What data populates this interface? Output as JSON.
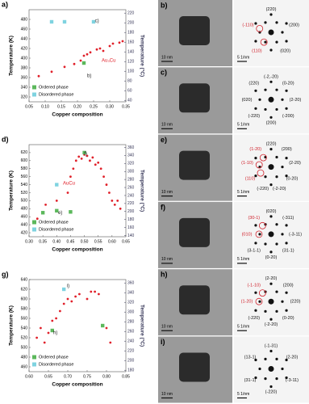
{
  "chart_data": [
    {
      "type": "scatter",
      "panel": "a)",
      "xlabel": "Copper composition",
      "ylabel": "Temperature (K)",
      "y2label": "Temperature (°C)",
      "legend": "lower left",
      "xlim": [
        0.05,
        0.35
      ],
      "xticks": [
        0.05,
        {
          "value": 0.1,
          "label": "0.10"
        },
        0.15,
        {
          "value": 0.2,
          "label": "0.20"
        },
        0.25,
        {
          "value": 0.3,
          "label": "0.30"
        },
        0.35
      ],
      "ylim": [
        310,
        500
      ],
      "yticks": [
        320,
        340,
        360,
        380,
        400,
        420,
        440,
        460,
        480
      ],
      "y2lim": [
        37,
        227
      ],
      "y2ticks": [
        40,
        60,
        80,
        100,
        120,
        140,
        160,
        180,
        200,
        220
      ],
      "series": [
        {
          "color": "#e0202a",
          "x": [
            0.08,
            0.12,
            0.16,
            0.19,
            0.21,
            0.22,
            0.23,
            0.24,
            0.26,
            0.27,
            0.28,
            0.3,
            0.31,
            0.33,
            0.34
          ],
          "values": [
            363,
            372,
            382,
            388,
            395,
            405,
            408,
            412,
            418,
            420,
            415,
            425,
            430,
            432,
            435
          ]
        },
        {
          "name": "Ordered phase",
          "color": "#5cb85c",
          "x": [
            0.22
          ],
          "values": [
            390
          ]
        },
        {
          "name": "Disordered phase",
          "color": "#7fd3e0",
          "x": [
            0.12,
            0.16,
            0.25
          ],
          "values": [
            475,
            475,
            475
          ]
        }
      ],
      "annotations": [
        "b)",
        "c)",
        "Au₃Cu"
      ]
    },
    {
      "type": "scatter",
      "panel": "d)",
      "xlabel": "Copper composition",
      "ylabel": "Temperature (K)",
      "y2label": "Temperature (°C)",
      "legend": "lower left",
      "xlim": [
        0.3,
        0.65
      ],
      "xticks": [
        {
          "value": 0.3,
          "label": "0.30"
        },
        0.35,
        {
          "value": 0.4,
          "label": "0.40"
        },
        0.45,
        {
          "value": 0.5,
          "label": "0.50"
        },
        0.55,
        {
          "value": 0.6,
          "label": "0.60"
        },
        0.65
      ],
      "ylim": [
        410,
        640
      ],
      "yticks": [
        420,
        440,
        460,
        480,
        500,
        520,
        540,
        560,
        580,
        600,
        620
      ],
      "y2lim": [
        137,
        367
      ],
      "y2ticks": [
        140,
        160,
        180,
        200,
        220,
        240,
        260,
        280,
        300,
        320,
        340,
        360
      ],
      "series": [
        {
          "color": "#e0202a",
          "x": [
            0.33,
            0.36,
            0.4,
            0.44,
            0.45,
            0.46,
            0.47,
            0.48,
            0.49,
            0.5,
            0.51,
            0.52,
            0.53,
            0.54,
            0.55,
            0.56,
            0.57,
            0.58,
            0.59,
            0.6,
            0.61,
            0.62,
            0.63
          ],
          "values": [
            455,
            490,
            500,
            520,
            560,
            580,
            600,
            610,
            605,
            615,
            612,
            600,
            608,
            590,
            595,
            580,
            560,
            540,
            520,
            500,
            490,
            500,
            480
          ]
        },
        {
          "name": "Ordered phase",
          "color": "#5cb85c",
          "x": [
            0.35,
            0.4,
            0.45,
            0.5
          ],
          "values": [
            470,
            475,
            472,
            620
          ]
        },
        {
          "name": "Disordered phase",
          "color": "#7fd3e0",
          "x": [
            0.4
          ],
          "values": [
            540
          ]
        }
      ],
      "annotations": [
        "f)",
        "e)",
        "AuCu"
      ]
    },
    {
      "type": "scatter",
      "panel": "g)",
      "xlabel": "Copper composition",
      "ylabel": "Temperature (K)",
      "y2label": "Temperature (°C)",
      "legend": "lower left",
      "xlim": [
        0.6,
        0.85
      ],
      "xticks": [
        {
          "value": 0.6,
          "label": "0.60"
        },
        0.65,
        {
          "value": 0.7,
          "label": "0.70"
        },
        0.75,
        {
          "value": 0.8,
          "label": "0.80"
        },
        0.85
      ],
      "ylim": [
        450,
        640
      ],
      "yticks": [
        460,
        480,
        500,
        520,
        540,
        560,
        580,
        600,
        620,
        640
      ],
      "y2lim": [
        177,
        367
      ],
      "y2ticks": [
        180,
        200,
        220,
        240,
        260,
        280,
        300,
        320,
        340,
        360
      ],
      "series": [
        {
          "color": "#e0202a",
          "x": [
            0.62,
            0.63,
            0.64,
            0.65,
            0.66,
            0.67,
            0.68,
            0.69,
            0.7,
            0.71,
            0.72,
            0.73,
            0.75,
            0.76,
            0.77,
            0.78,
            0.8,
            0.81
          ],
          "values": [
            520,
            540,
            510,
            530,
            555,
            560,
            575,
            590,
            600,
            595,
            605,
            610,
            600,
            615,
            615,
            610,
            540,
            510
          ]
        },
        {
          "name": "Ordered phase",
          "color": "#5cb85c",
          "x": [
            0.66,
            0.79
          ],
          "values": [
            535,
            545
          ]
        },
        {
          "name": "Disordered phase",
          "color": "#7fd3e0",
          "x": [
            0.69
          ],
          "values": [
            620
          ]
        }
      ],
      "annotations": [
        "h)",
        "i)"
      ]
    }
  ],
  "image_panels": [
    {
      "label": "b)",
      "scale_image": "10 nm",
      "scale_diffraction": "5 1/nm",
      "indices": [
        "(220)",
        "(200)",
        "(020)"
      ],
      "red_indices": [
        "(110)",
        "(-110)"
      ]
    },
    {
      "label": "c)",
      "scale_image": "10 nm",
      "scale_diffraction": "5 1/nm",
      "indices": [
        "(-2,-20)",
        "(0-20)",
        "(2-20)",
        "(-200)",
        "(200)",
        "(-220)",
        "(020)",
        "(220)"
      ],
      "red_indices": []
    },
    {
      "label": "e)",
      "scale_image": "10 nm",
      "scale_diffraction": "5 1/nm",
      "indices": [
        "(220)",
        "(200)",
        "(2-20)",
        "(0-20)",
        "(-2-20)",
        "(-220)"
      ],
      "red_indices": [
        "(110)",
        "(1-10)",
        "(1-20)"
      ]
    },
    {
      "label": "f)",
      "scale_image": "10 nm",
      "scale_diffraction": "5 1/nm",
      "indices": [
        "(020)",
        "(-311)",
        "(-3-11)",
        "(31-1)",
        "(0-20)",
        "(3-1-1)"
      ],
      "red_indices": [
        "(010)",
        "(30-1)"
      ]
    },
    {
      "label": "h)",
      "scale_image": "10 nm",
      "scale_diffraction": "5 1/nm",
      "indices": [
        "(2-20)",
        "(200)",
        "(220)",
        "(0-20)",
        "(-2-20)",
        "(-220)"
      ],
      "red_indices": [
        "(1-20)",
        "(-1-10)"
      ]
    },
    {
      "label": "i)",
      "scale_image": "10 nm",
      "scale_diffraction": "5 1/nm",
      "indices": [
        "(-1-31)",
        "(2-20)",
        "(-3-11)",
        "(-220)",
        "(31-1)",
        "(13-1)"
      ],
      "red_indices": []
    }
  ]
}
